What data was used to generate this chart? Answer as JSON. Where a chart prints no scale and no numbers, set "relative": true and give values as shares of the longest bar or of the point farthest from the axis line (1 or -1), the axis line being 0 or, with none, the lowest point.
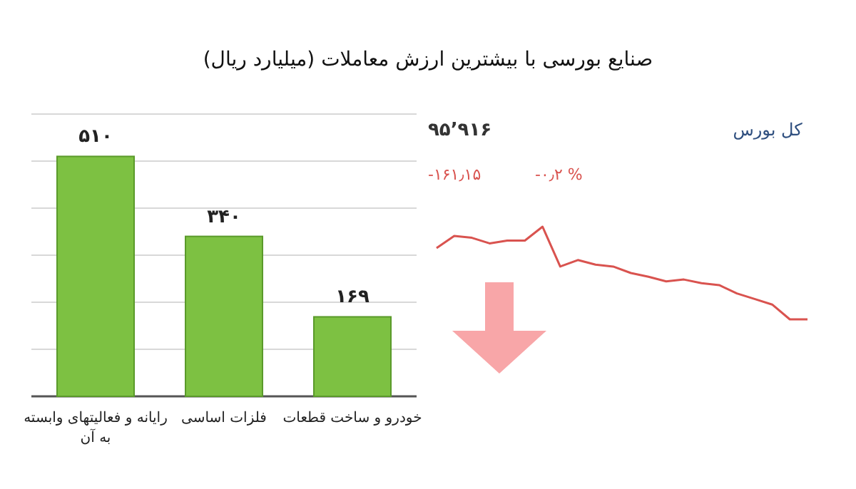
{
  "chart_data": [
    {
      "type": "bar",
      "title": "صنایع بورسی با بیشترین ارزش معاملات  (میلیارد ریال)",
      "categories": [
        "رایانه و فعالیتهای وابسته به آن",
        "فلزات اساسی",
        "خودرو و ساخت قطعات"
      ],
      "values": [
        510,
        340,
        169
      ],
      "value_labels": [
        "۵۱۰",
        "۳۴۰",
        "۱۶۹"
      ],
      "color": "#7dc142",
      "ylim": [
        0,
        600
      ],
      "yticks": [
        {
          "value": 0,
          "label": null
        },
        {
          "value": 100,
          "label": null
        },
        {
          "value": 200,
          "label": null
        },
        {
          "value": 300,
          "label": null
        },
        {
          "value": 400,
          "label": null
        },
        {
          "value": 500,
          "label": null
        },
        {
          "value": 600,
          "label": null
        }
      ],
      "grid": "y",
      "tick_labels": false
    },
    {
      "type": "line",
      "title": "کل بورس",
      "relative": true,
      "marker": "none",
      "line_style": "solid",
      "annotations": [
        "۹۵٬۹۱۶",
        "-۱۶۱٫۱۵",
        "-۰٫۲ %"
      ],
      "categories": [
        null,
        null,
        null,
        null,
        null,
        null,
        null,
        null,
        null,
        null,
        null,
        null,
        null,
        null,
        null,
        null,
        null,
        null,
        null,
        null,
        null,
        null
      ],
      "series": [
        {
          "color": "#d9534f",
          "values": [
            0.77,
            0.9,
            0.88,
            0.82,
            0.85,
            0.85,
            1,
            0.57,
            0.64,
            0.59,
            0.57,
            0.5,
            0.46,
            0.41,
            0.43,
            0.39,
            0.37,
            0.28,
            0.22,
            0.16,
            0,
            0
          ]
        }
      ]
    }
  ]
}
